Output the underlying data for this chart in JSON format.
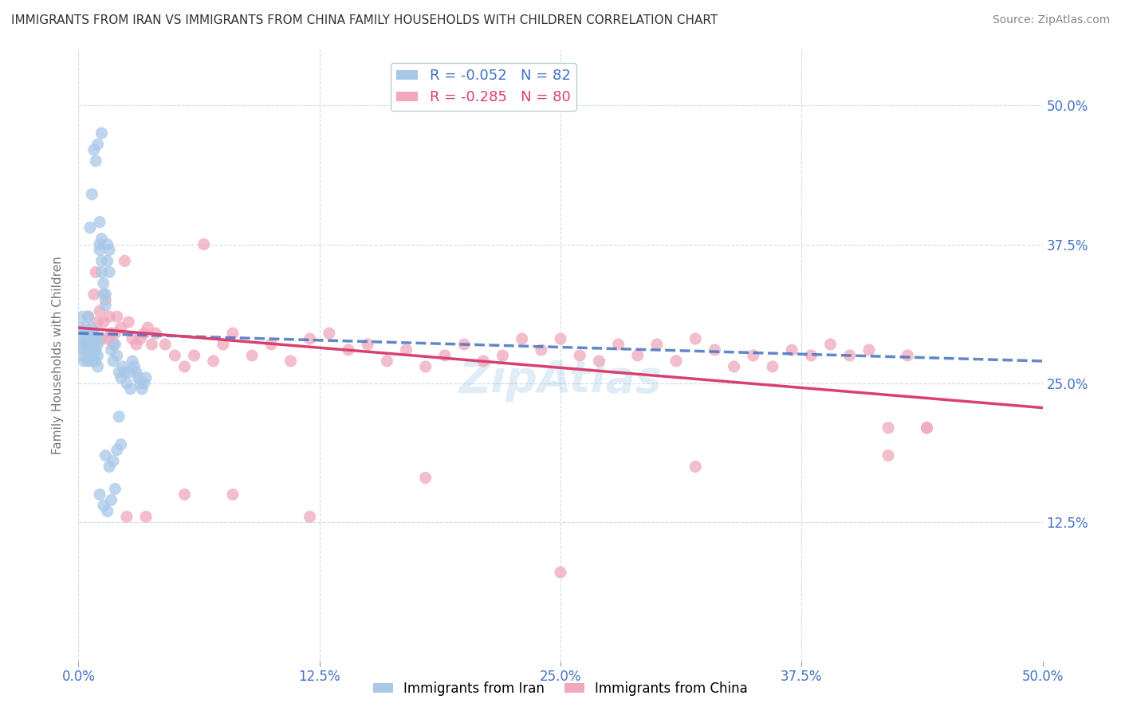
{
  "title": "IMMIGRANTS FROM IRAN VS IMMIGRANTS FROM CHINA FAMILY HOUSEHOLDS WITH CHILDREN CORRELATION CHART",
  "source": "Source: ZipAtlas.com",
  "ylabel": "Family Households with Children",
  "legend_label_1": "Immigrants from Iran",
  "legend_label_2": "Immigrants from China",
  "R1": -0.052,
  "N1": 82,
  "R2": -0.285,
  "N2": 80,
  "color1": "#a8c8e8",
  "color2": "#f0a8bc",
  "trend1_color": "#4472c4",
  "trend2_color": "#d94070",
  "xlim": [
    0.0,
    0.5
  ],
  "ylim": [
    0.0,
    0.55
  ],
  "xticks": [
    0.0,
    0.125,
    0.25,
    0.375,
    0.5
  ],
  "yticks": [
    0.0,
    0.125,
    0.25,
    0.375,
    0.5
  ],
  "xtick_labels": [
    "0.0%",
    "12.5%",
    "25.0%",
    "37.5%",
    "50.0%"
  ],
  "ytick_labels_right": [
    "",
    "12.5%",
    "25.0%",
    "37.5%",
    "50.0%"
  ],
  "background_color": "#ffffff",
  "grid_color": "#c8d8e8",
  "iran_x": [
    0.001,
    0.001,
    0.002,
    0.002,
    0.002,
    0.003,
    0.003,
    0.003,
    0.004,
    0.004,
    0.004,
    0.005,
    0.005,
    0.005,
    0.005,
    0.006,
    0.006,
    0.006,
    0.007,
    0.007,
    0.007,
    0.007,
    0.008,
    0.008,
    0.008,
    0.009,
    0.009,
    0.009,
    0.01,
    0.01,
    0.01,
    0.01,
    0.011,
    0.011,
    0.011,
    0.012,
    0.012,
    0.012,
    0.013,
    0.013,
    0.014,
    0.014,
    0.015,
    0.015,
    0.016,
    0.016,
    0.017,
    0.018,
    0.019,
    0.02,
    0.021,
    0.022,
    0.023,
    0.024,
    0.025,
    0.026,
    0.027,
    0.028,
    0.029,
    0.03,
    0.031,
    0.032,
    0.033,
    0.034,
    0.035,
    0.01,
    0.012,
    0.008,
    0.006,
    0.007,
    0.009,
    0.011,
    0.013,
    0.015,
    0.017,
    0.019,
    0.021,
    0.014,
    0.016,
    0.018,
    0.02,
    0.022
  ],
  "iran_y": [
    0.285,
    0.3,
    0.29,
    0.275,
    0.31,
    0.28,
    0.295,
    0.27,
    0.29,
    0.285,
    0.3,
    0.28,
    0.295,
    0.27,
    0.31,
    0.285,
    0.29,
    0.275,
    0.3,
    0.285,
    0.27,
    0.29,
    0.285,
    0.295,
    0.275,
    0.29,
    0.28,
    0.27,
    0.285,
    0.275,
    0.29,
    0.265,
    0.375,
    0.395,
    0.37,
    0.38,
    0.35,
    0.36,
    0.33,
    0.34,
    0.32,
    0.33,
    0.375,
    0.36,
    0.35,
    0.37,
    0.28,
    0.27,
    0.285,
    0.275,
    0.26,
    0.255,
    0.265,
    0.26,
    0.25,
    0.26,
    0.245,
    0.27,
    0.265,
    0.26,
    0.255,
    0.25,
    0.245,
    0.25,
    0.255,
    0.465,
    0.475,
    0.46,
    0.39,
    0.42,
    0.45,
    0.15,
    0.14,
    0.135,
    0.145,
    0.155,
    0.22,
    0.185,
    0.175,
    0.18,
    0.19,
    0.195
  ],
  "china_x": [
    0.003,
    0.005,
    0.007,
    0.008,
    0.009,
    0.01,
    0.011,
    0.012,
    0.013,
    0.014,
    0.015,
    0.016,
    0.017,
    0.018,
    0.019,
    0.02,
    0.022,
    0.024,
    0.026,
    0.028,
    0.03,
    0.032,
    0.034,
    0.036,
    0.038,
    0.04,
    0.045,
    0.05,
    0.055,
    0.06,
    0.065,
    0.07,
    0.075,
    0.08,
    0.09,
    0.1,
    0.11,
    0.12,
    0.13,
    0.14,
    0.15,
    0.16,
    0.17,
    0.18,
    0.19,
    0.2,
    0.21,
    0.22,
    0.23,
    0.24,
    0.25,
    0.26,
    0.27,
    0.28,
    0.29,
    0.3,
    0.31,
    0.32,
    0.33,
    0.34,
    0.35,
    0.36,
    0.37,
    0.38,
    0.39,
    0.4,
    0.41,
    0.42,
    0.43,
    0.44,
    0.025,
    0.035,
    0.055,
    0.08,
    0.12,
    0.18,
    0.25,
    0.32,
    0.42,
    0.44
  ],
  "china_y": [
    0.285,
    0.31,
    0.295,
    0.33,
    0.35,
    0.305,
    0.315,
    0.29,
    0.305,
    0.325,
    0.29,
    0.31,
    0.295,
    0.285,
    0.295,
    0.31,
    0.3,
    0.36,
    0.305,
    0.29,
    0.285,
    0.29,
    0.295,
    0.3,
    0.285,
    0.295,
    0.285,
    0.275,
    0.265,
    0.275,
    0.375,
    0.27,
    0.285,
    0.295,
    0.275,
    0.285,
    0.27,
    0.29,
    0.295,
    0.28,
    0.285,
    0.27,
    0.28,
    0.265,
    0.275,
    0.285,
    0.27,
    0.275,
    0.29,
    0.28,
    0.29,
    0.275,
    0.27,
    0.285,
    0.275,
    0.285,
    0.27,
    0.29,
    0.28,
    0.265,
    0.275,
    0.265,
    0.28,
    0.275,
    0.285,
    0.275,
    0.28,
    0.21,
    0.275,
    0.21,
    0.13,
    0.13,
    0.15,
    0.15,
    0.13,
    0.165,
    0.08,
    0.175,
    0.185,
    0.21
  ],
  "trend1_x_start": 0.0,
  "trend1_x_end": 0.5,
  "trend1_y_start": 0.295,
  "trend1_y_end": 0.27,
  "trend2_x_start": 0.0,
  "trend2_x_end": 0.5,
  "trend2_y_start": 0.3,
  "trend2_y_end": 0.228
}
